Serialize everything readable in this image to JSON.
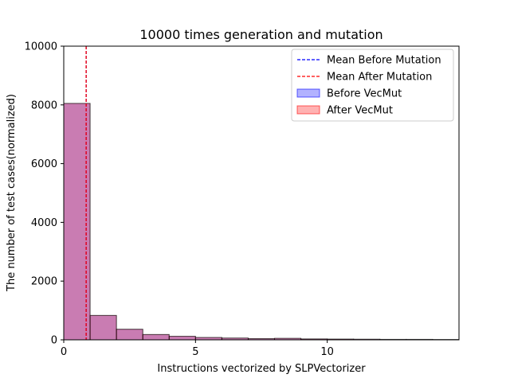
{
  "chart_data": {
    "type": "bar",
    "title": "10000 times generation and mutation",
    "xlabel": "Instructions vectorized by SLPVectorizer",
    "ylabel": "The number of test cases(normalized)",
    "xlim": [
      0,
      15
    ],
    "ylim": [
      0,
      10000
    ],
    "xticks": [
      0,
      5,
      10
    ],
    "yticks": [
      0,
      2000,
      4000,
      6000,
      8000,
      10000
    ],
    "bins": [
      [
        0,
        1
      ],
      [
        1,
        2
      ],
      [
        2,
        3
      ],
      [
        3,
        4
      ],
      [
        4,
        5
      ],
      [
        5,
        6
      ],
      [
        6,
        7
      ],
      [
        7,
        8
      ],
      [
        8,
        9
      ],
      [
        9,
        10
      ],
      [
        10,
        11
      ],
      [
        11,
        12
      ],
      [
        12,
        13
      ],
      [
        13,
        14
      ],
      [
        14,
        15
      ]
    ],
    "series": [
      {
        "name": "Before VecMut",
        "kind": "histogram",
        "color": "#0000ff",
        "alpha": 0.3,
        "values": [
          8050,
          830,
          360,
          180,
          120,
          80,
          60,
          40,
          50,
          30,
          25,
          20,
          15,
          15,
          10
        ]
      },
      {
        "name": "After VecMut",
        "kind": "histogram",
        "color": "#ff0000",
        "alpha": 0.3,
        "values": [
          8050,
          830,
          360,
          180,
          120,
          80,
          60,
          40,
          50,
          30,
          25,
          20,
          15,
          15,
          10
        ]
      }
    ],
    "mean_lines": [
      {
        "name": "Mean Before Mutation",
        "x": 0.85,
        "color": "#0000ff"
      },
      {
        "name": "Mean After Mutation",
        "x": 0.85,
        "color": "#ff0000"
      }
    ],
    "legend": {
      "position": "top-right",
      "entries": [
        "Mean Before Mutation",
        "Mean After Mutation",
        "Before VecMut",
        "After VecMut"
      ]
    },
    "grid": false
  }
}
